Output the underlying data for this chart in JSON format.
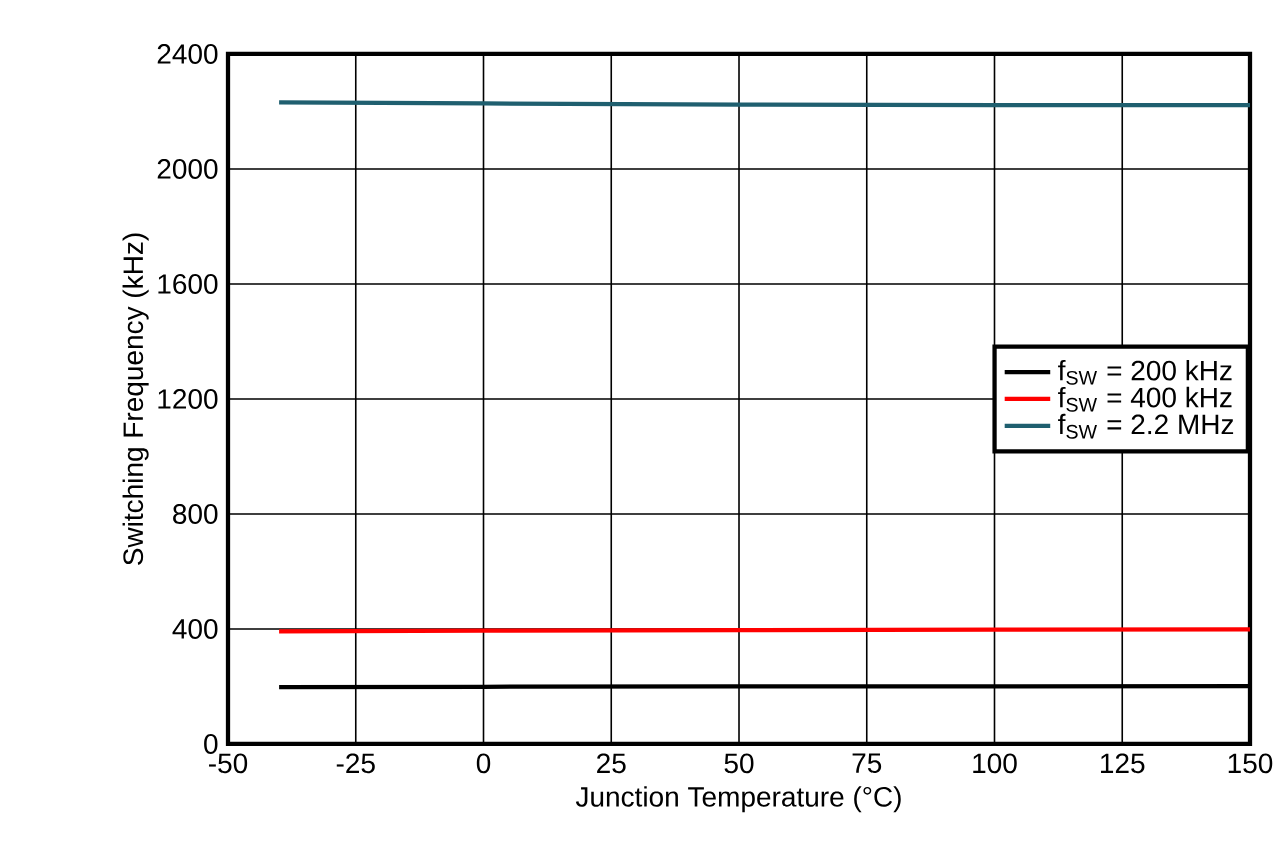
{
  "chart_data": {
    "type": "line",
    "xlabel": "Junction Temperature (°C)",
    "ylabel": "Switching Frequency (kHz)",
    "xlim": [
      -50,
      150
    ],
    "xticks": [
      -50,
      -25,
      0,
      25,
      50,
      75,
      100,
      125,
      150
    ],
    "ylim": [
      0,
      2400
    ],
    "yticks": [
      0,
      400,
      800,
      1200,
      1600,
      2000,
      2400
    ],
    "grid": true,
    "legend": "right",
    "line_style": "solid",
    "marker": "none",
    "series": [
      {
        "name": "f$_{SW}$ = 200 kHz",
        "color": "#000000",
        "x": [
          -40,
          0,
          50,
          100,
          150
        ],
        "values": [
          198,
          199,
          200,
          200,
          201
        ]
      },
      {
        "name": "f$_{SW}$ = 400 kHz",
        "color": "#ff0000",
        "x": [
          -40,
          0,
          50,
          100,
          150
        ],
        "values": [
          392,
          394,
          396,
          398,
          399
        ]
      },
      {
        "name": "f$_{SW}$ = 2.2 MHz",
        "color": "#1f5f6f",
        "x": [
          -40,
          0,
          50,
          100,
          150
        ],
        "values": [
          2232,
          2228,
          2224,
          2222,
          2222
        ]
      }
    ]
  }
}
